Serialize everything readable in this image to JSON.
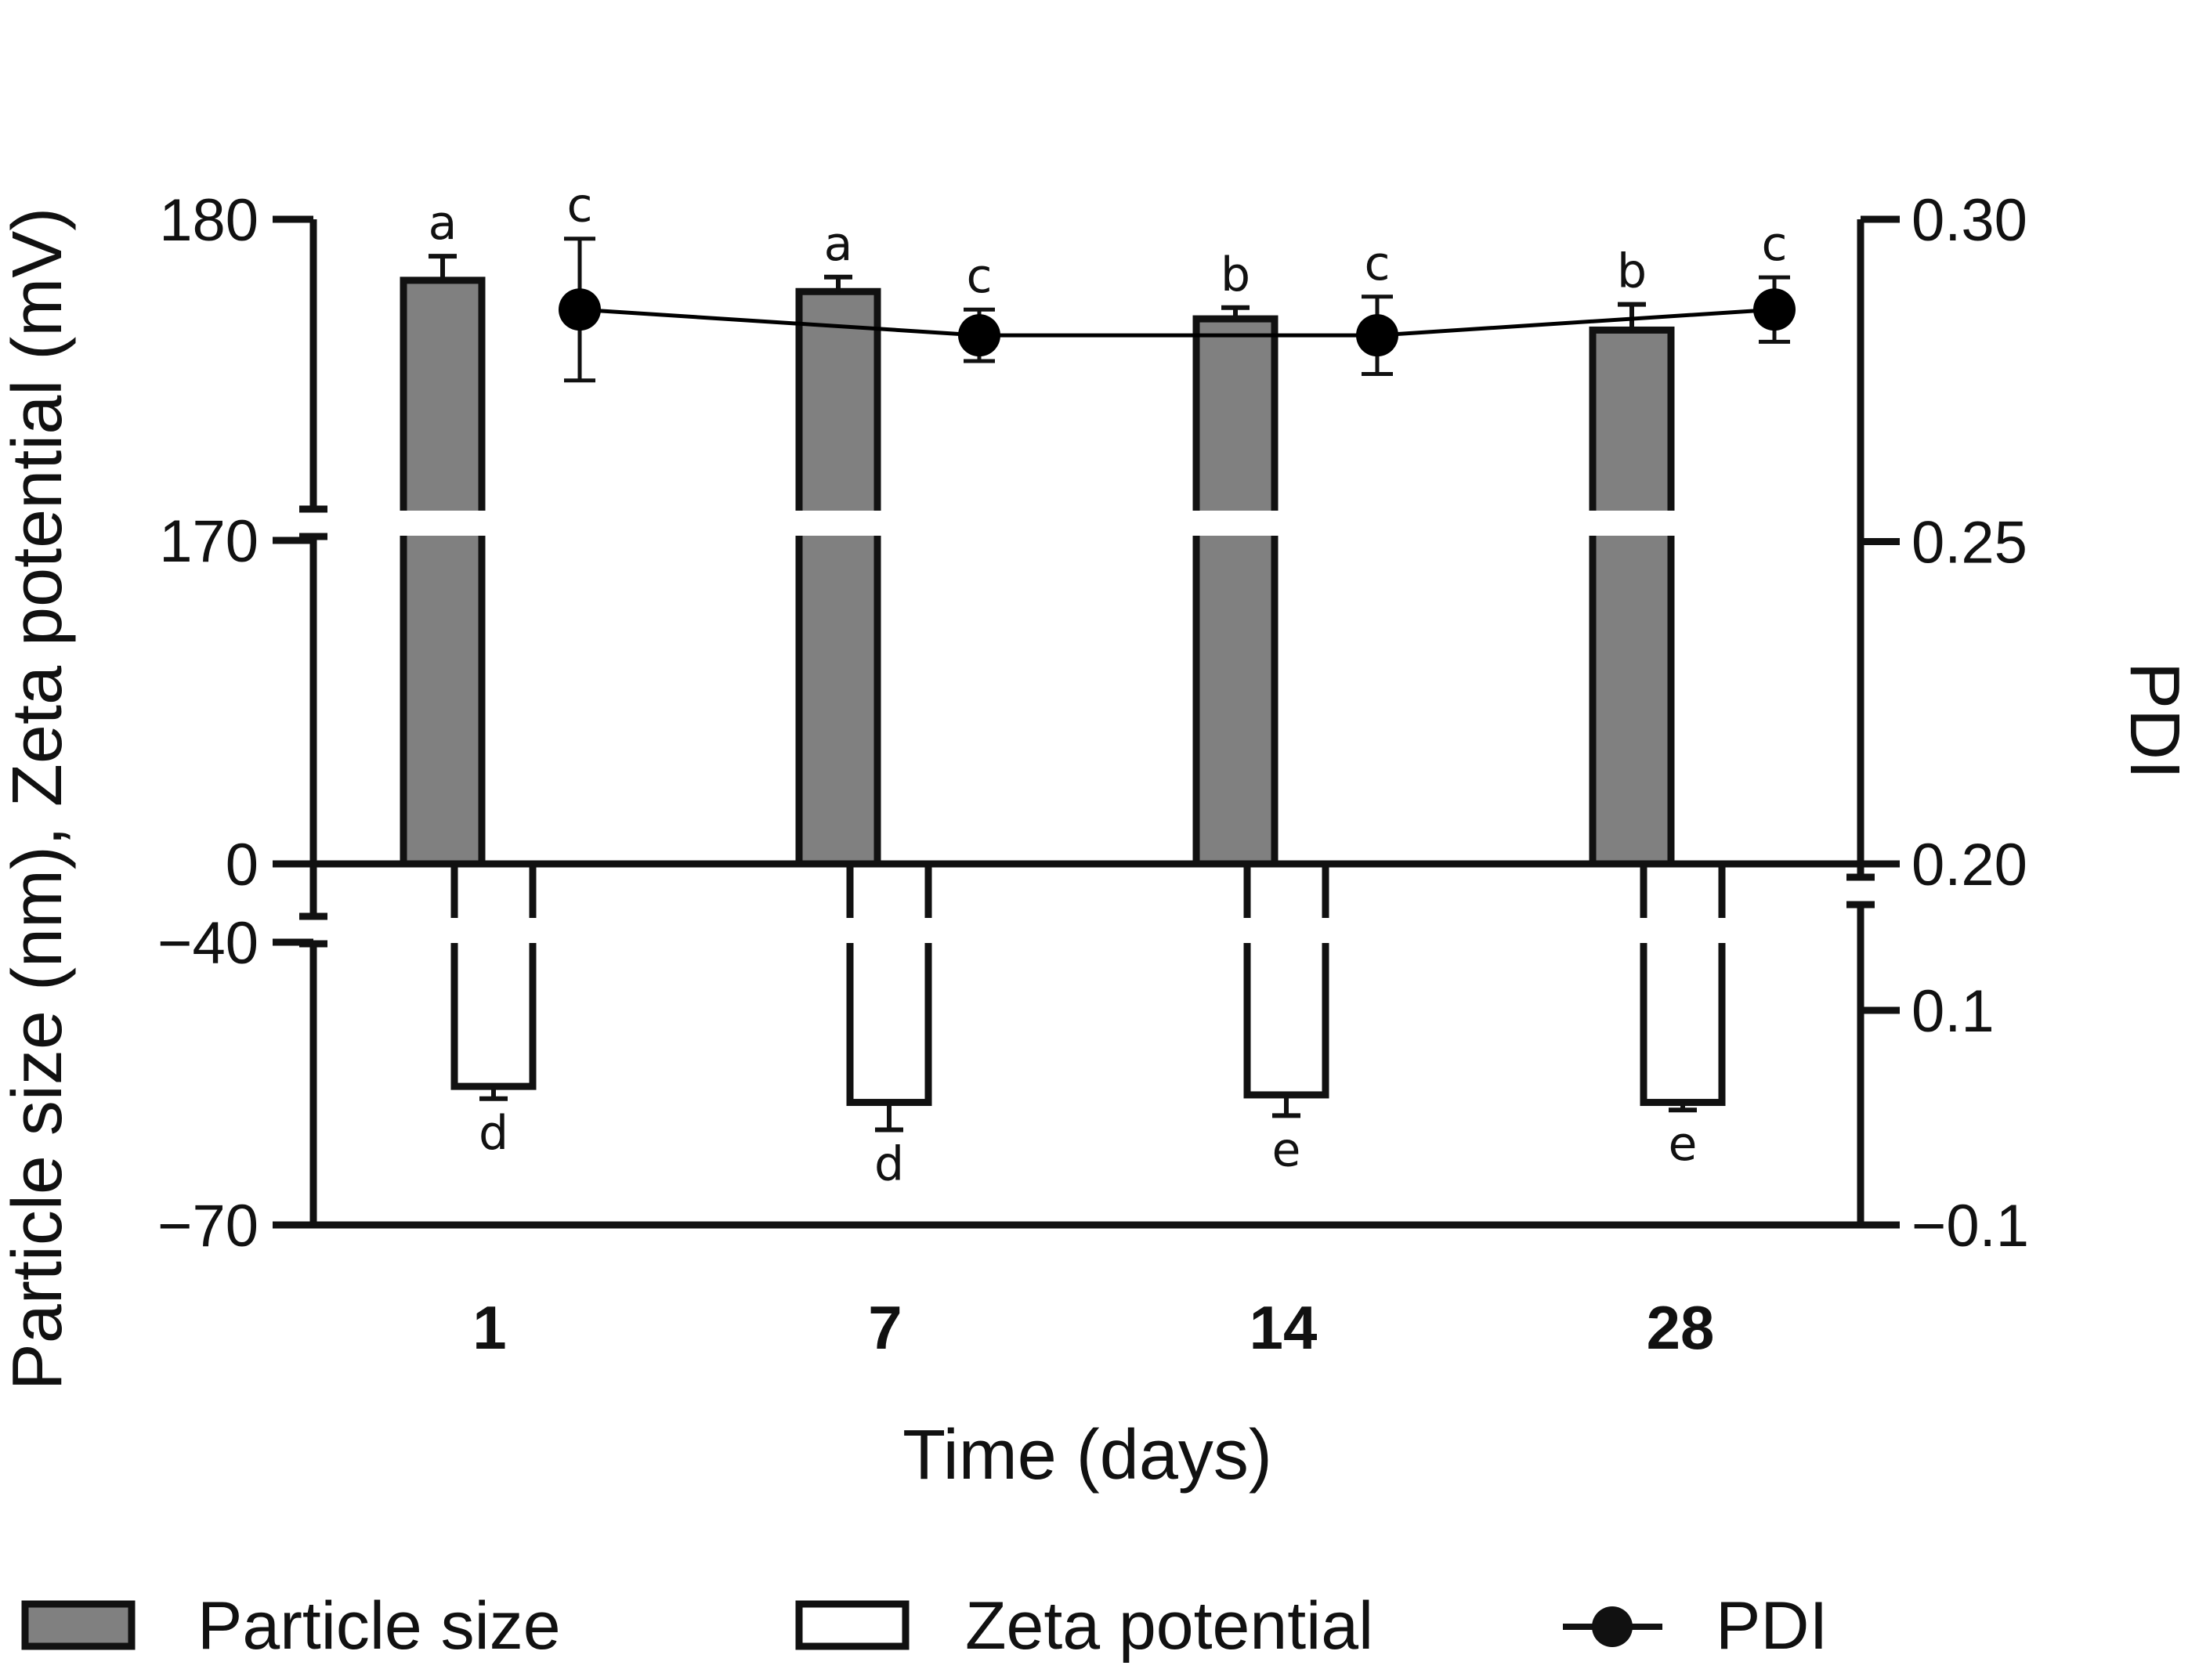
{
  "chart_data": {
    "type": "bar",
    "categories": [
      "1",
      "7",
      "14",
      "28"
    ],
    "xlabel": "Time (days)",
    "ylabel": "Particle size (nm), Zeta potential (mV)",
    "y2label": "PDI",
    "left_axis": {
      "segments": [
        {
          "range": [
            170,
            180
          ],
          "ticks": [
            180,
            170
          ]
        },
        {
          "range": [
            -40,
            0
          ],
          "ticks": [
            0
          ]
        },
        {
          "range": [
            -70,
            -40
          ],
          "ticks": [
            -40,
            -70
          ]
        }
      ],
      "tick_labels": [
        "180",
        "170",
        "0",
        "−40",
        "−70"
      ]
    },
    "right_axis": {
      "segments": [
        {
          "range": [
            0.2,
            0.3
          ],
          "ticks": [
            0.3,
            0.25,
            0.2
          ]
        },
        {
          "range": [
            -0.1,
            0.15
          ],
          "ticks": [
            0.1,
            -0.1
          ]
        }
      ],
      "tick_labels": [
        "0.30",
        "0.25",
        "0.20",
        "0.1",
        "−0.1"
      ]
    },
    "series": [
      {
        "name": "Particle size",
        "kind": "bar",
        "axis": "left",
        "fill": "#808080",
        "values": [
          178.1,
          177.75,
          176.9,
          176.55
        ],
        "errors": [
          0.75,
          0.45,
          0.35,
          0.8
        ],
        "letters": [
          "a",
          "a",
          "b",
          "b"
        ]
      },
      {
        "name": "Zeta potential",
        "kind": "bar",
        "axis": "left",
        "fill": "#ffffff",
        "values": [
          -55.3,
          -57.0,
          -56.2,
          -57.0
        ],
        "errors": [
          1.3,
          2.9,
          2.2,
          0.8
        ],
        "letters": [
          "d",
          "d",
          "e",
          "e"
        ]
      },
      {
        "name": "PDI",
        "kind": "line",
        "axis": "right",
        "color": "#000000",
        "values": [
          0.286,
          0.282,
          0.282,
          0.286
        ],
        "errors": [
          0.011,
          0.004,
          0.006,
          0.005
        ],
        "letters": [
          "c",
          "c",
          "c",
          "c"
        ]
      }
    ],
    "legend": {
      "position": "bottom",
      "items": [
        "Particle size",
        "Zeta potential",
        "PDI"
      ]
    }
  }
}
